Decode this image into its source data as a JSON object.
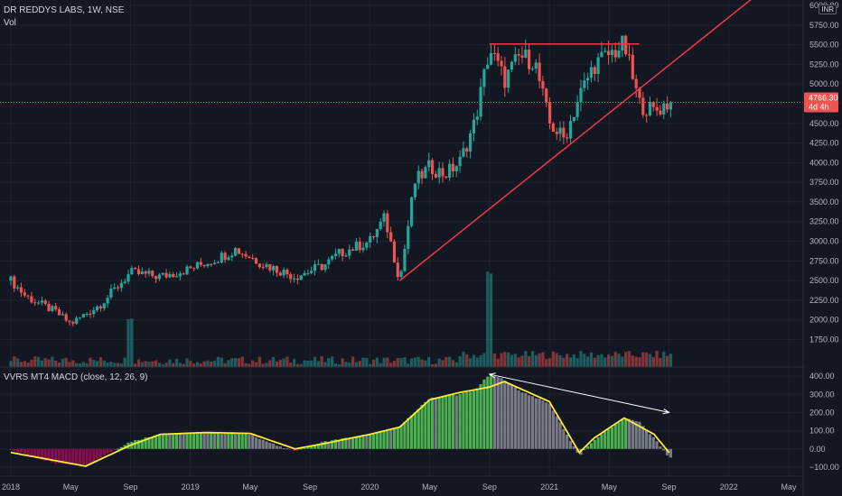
{
  "header": {
    "symbol": "DR REDDYS LABS, 1W, NSE",
    "volume_label": "Vol",
    "indicator_label": "VVRS MT4 MACD  (close, 12, 26, 9)"
  },
  "currency": "INR",
  "price_badge": {
    "price": "4766.30",
    "countdown": "4d 4h"
  },
  "colors": {
    "background": "#131722",
    "up": "#26a69a",
    "down": "#ef5350",
    "trendline": "#f23645",
    "arrow": "#ffffff",
    "signal": "#ffeb3b",
    "hist_up": "#4caf50",
    "hist_fade": "#787b86",
    "hist_neg": "#880e4f",
    "grid": "#1e222d"
  },
  "chart_data": [
    {
      "type": "candlestick",
      "title": "DR REDDYS LABS, 1W, NSE",
      "ylim": [
        1400,
        6000
      ],
      "y_ticks": [
        "1750.00",
        "2000.00",
        "2250.00",
        "2500.00",
        "2750.00",
        "3000.00",
        "3250.00",
        "3500.00",
        "3750.00",
        "4000.00",
        "4250.00",
        "4500.00",
        "4750.00",
        "5000.00",
        "5250.00",
        "5500.00",
        "5750.00",
        "6000.00"
      ],
      "x_ticks": [
        "2018",
        "May",
        "Sep",
        "2019",
        "May",
        "Sep",
        "2020",
        "May",
        "Sep",
        "2021",
        "May",
        "Sep",
        "2022",
        "May"
      ],
      "last_price": 4766.3,
      "anchors": [
        {
          "label": "2018 start",
          "close": 2500
        },
        {
          "label": "Feb 2018",
          "close": 2300
        },
        {
          "label": "Apr 2018",
          "close": 2100
        },
        {
          "label": "May 2018",
          "close": 1950
        },
        {
          "label": "Jul 2018",
          "close": 2200
        },
        {
          "label": "Sep 2018",
          "close": 2600
        },
        {
          "label": "Nov 2018",
          "close": 2550
        },
        {
          "label": "Jan 2019",
          "close": 2650
        },
        {
          "label": "Mar 2019",
          "close": 2800
        },
        {
          "label": "Apr 2019",
          "close": 2900
        },
        {
          "label": "Jun 2019",
          "close": 2700
        },
        {
          "label": "Aug 2019",
          "close": 2550
        },
        {
          "label": "Oct 2019",
          "close": 2700
        },
        {
          "label": "Nov 2019",
          "close": 2850
        },
        {
          "label": "Jan 2020",
          "close": 3000
        },
        {
          "label": "Feb 2020",
          "close": 3300
        },
        {
          "label": "Mar 2020",
          "close": 2500
        },
        {
          "label": "Apr 2020",
          "close": 3750
        },
        {
          "label": "May 2020",
          "close": 3950
        },
        {
          "label": "Jun 2020",
          "close": 3850
        },
        {
          "label": "Jul 2020",
          "close": 4000
        },
        {
          "label": "Aug 2020",
          "close": 4500
        },
        {
          "label": "Sep 2020",
          "close": 5450
        },
        {
          "label": "Oct 2020",
          "close": 5050
        },
        {
          "label": "Nov 2020",
          "close": 5350
        },
        {
          "label": "Dec 2020",
          "close": 5300
        },
        {
          "label": "Jan 2021",
          "close": 4500
        },
        {
          "label": "Feb 2021",
          "close": 4300
        },
        {
          "label": "Mar 2021",
          "close": 4850
        },
        {
          "label": "Apr 2021",
          "close": 5250
        },
        {
          "label": "Jun 2021",
          "close": 5500
        },
        {
          "label": "Jul 2021",
          "close": 4750
        },
        {
          "label": "Aug 2021",
          "close": 4650
        },
        {
          "label": "Sep 2021",
          "close": 4766.3
        }
      ],
      "trendlines": [
        {
          "name": "resistance",
          "start": [
            "Sep 2020",
            5510
          ],
          "end": [
            "Jul 2021",
            5510
          ]
        },
        {
          "name": "rising support",
          "start": [
            "Mar 2020",
            2500
          ],
          "end": [
            "2022",
            5850
          ]
        }
      ],
      "volume_spikes": [
        "Sep 2018",
        "Sep 2020"
      ]
    },
    {
      "type": "histogram",
      "title": "VVRS MT4 MACD  (close, 12, 26, 9)",
      "ylim": [
        -150,
        450
      ],
      "y_ticks": [
        "400.00",
        "300.00",
        "200.00",
        "100.00",
        "0.00",
        "−100.00"
      ],
      "anchors": [
        {
          "label": "2018 start",
          "value": -5
        },
        {
          "label": "Apr 2018",
          "value": -80
        },
        {
          "label": "Jun 2018",
          "value": -90
        },
        {
          "label": "Sep 2018",
          "value": 40
        },
        {
          "label": "Nov 2018",
          "value": 80
        },
        {
          "label": "Feb 2019",
          "value": 90
        },
        {
          "label": "May 2019",
          "value": 80
        },
        {
          "label": "Jul 2019",
          "value": 10
        },
        {
          "label": "Aug 2019",
          "value": -10
        },
        {
          "label": "Oct 2019",
          "value": 40
        },
        {
          "label": "Jan 2020",
          "value": 80
        },
        {
          "label": "Mar 2020",
          "value": 120
        },
        {
          "label": "May 2020",
          "value": 280
        },
        {
          "label": "Jul 2020",
          "value": 300
        },
        {
          "label": "Aug 2020",
          "value": 320
        },
        {
          "label": "Sep 2020",
          "value": 410
        },
        {
          "label": "Oct 2020",
          "value": 380
        },
        {
          "label": "Nov 2020",
          "value": 320
        },
        {
          "label": "Jan 2021",
          "value": 250
        },
        {
          "label": "Mar 2021",
          "value": -40
        },
        {
          "label": "Apr 2021",
          "value": 50
        },
        {
          "label": "Jun 2021",
          "value": 170
        },
        {
          "label": "Jul 2021",
          "value": 150
        },
        {
          "label": "Aug 2021",
          "value": 60
        },
        {
          "label": "Sep 2021",
          "value": -50
        }
      ],
      "signal_anchors": [
        {
          "label": "2018 start",
          "value": -20
        },
        {
          "label": "Jun 2018",
          "value": -95
        },
        {
          "label": "Sep 2018",
          "value": 20
        },
        {
          "label": "Nov 2018",
          "value": 80
        },
        {
          "label": "Feb 2019",
          "value": 90
        },
        {
          "label": "May 2019",
          "value": 85
        },
        {
          "label": "Aug 2019",
          "value": 0
        },
        {
          "label": "Oct 2019",
          "value": 30
        },
        {
          "label": "Jan 2020",
          "value": 80
        },
        {
          "label": "Mar 2020",
          "value": 120
        },
        {
          "label": "May 2020",
          "value": 270
        },
        {
          "label": "Jul 2020",
          "value": 310
        },
        {
          "label": "Sep 2020",
          "value": 340
        },
        {
          "label": "Oct 2020",
          "value": 370
        },
        {
          "label": "Jan 2021",
          "value": 260
        },
        {
          "label": "Mar 2021",
          "value": -20
        },
        {
          "label": "Apr 2021",
          "value": 60
        },
        {
          "label": "Jun 2021",
          "value": 170
        },
        {
          "label": "Aug 2021",
          "value": 80
        },
        {
          "label": "Sep 2021",
          "value": -20
        }
      ],
      "annotation": {
        "type": "double-arrow",
        "from": [
          "Sep 2020",
          410
        ],
        "to": [
          "Sep 2021",
          200
        ]
      }
    }
  ]
}
